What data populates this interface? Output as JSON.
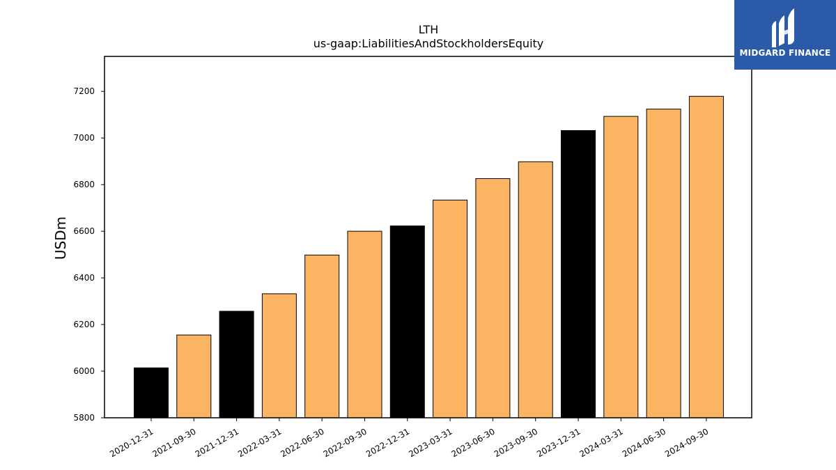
{
  "brand": {
    "name": "MIDGARD FINANCE",
    "color": "#2b5aa8"
  },
  "chart_data": {
    "type": "bar",
    "title": "LTH",
    "subtitle": "us-gaap:LiabilitiesAndStockholdersEquity",
    "xlabel": "",
    "ylabel": "USDm",
    "ylim": [
      5800,
      7350
    ],
    "yticks": [
      5800,
      6000,
      6200,
      6400,
      6600,
      6800,
      7000,
      7200
    ],
    "grid": false,
    "categories": [
      "2020-12-31",
      "2021-09-30",
      "2021-12-31",
      "2022-03-31",
      "2022-06-30",
      "2022-09-30",
      "2022-12-31",
      "2023-03-31",
      "2023-06-30",
      "2023-09-30",
      "2023-12-31",
      "2024-03-31",
      "2024-06-30",
      "2024-09-30"
    ],
    "values": [
      6014,
      6155,
      6257,
      6332,
      6498,
      6600,
      6623,
      6734,
      6826,
      6898,
      7032,
      7093,
      7124,
      7179
    ],
    "colors": [
      "#000000",
      "#fbb462",
      "#000000",
      "#fbb462",
      "#fbb462",
      "#fbb462",
      "#000000",
      "#fbb462",
      "#fbb462",
      "#fbb462",
      "#000000",
      "#fbb462",
      "#fbb462",
      "#fbb462"
    ]
  }
}
